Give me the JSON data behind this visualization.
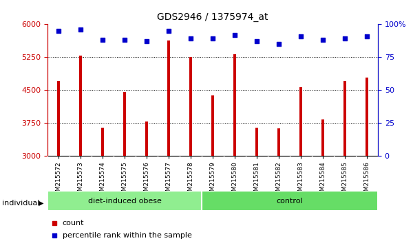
{
  "title": "GDS2946 / 1375974_at",
  "categories": [
    "GSM215572",
    "GSM215573",
    "GSM215574",
    "GSM215575",
    "GSM215576",
    "GSM215577",
    "GSM215578",
    "GSM215579",
    "GSM215580",
    "GSM215581",
    "GSM215582",
    "GSM215583",
    "GSM215584",
    "GSM215585",
    "GSM215586"
  ],
  "bar_values": [
    4700,
    5280,
    3640,
    4460,
    3780,
    5630,
    5250,
    4380,
    5310,
    3640,
    3620,
    4560,
    3820,
    4700,
    4780
  ],
  "percentile_values": [
    95,
    96,
    88,
    88,
    87,
    95,
    89,
    89,
    92,
    87,
    85,
    91,
    88,
    89,
    91
  ],
  "bar_color": "#cc0000",
  "dot_color": "#0000cc",
  "ylim_left": [
    3000,
    6000
  ],
  "ylim_right": [
    0,
    100
  ],
  "yticks_left": [
    3000,
    3750,
    4500,
    5250,
    6000
  ],
  "yticks_right": [
    0,
    25,
    50,
    75,
    100
  ],
  "grid_lines": [
    3750,
    4500,
    5250
  ],
  "groups": [
    {
      "label": "diet-induced obese",
      "start": 0,
      "end": 7,
      "color": "#90ee90"
    },
    {
      "label": "control",
      "start": 7,
      "end": 15,
      "color": "#66dd66"
    }
  ],
  "individual_label": "individual",
  "legend_items": [
    {
      "label": "count",
      "color": "#cc0000",
      "marker": "s"
    },
    {
      "label": "percentile rank within the sample",
      "color": "#0000cc",
      "marker": "s"
    }
  ],
  "tick_bg_color": "#d8d8d8",
  "plot_bg_color": "#ffffff",
  "right_axis_color": "#0000cc",
  "left_axis_color": "#cc0000",
  "bar_width": 0.12
}
